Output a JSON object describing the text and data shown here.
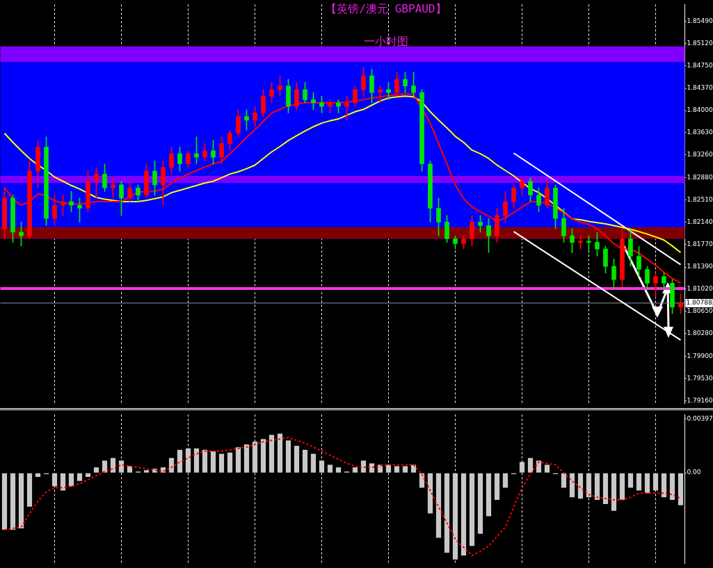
{
  "chart_data": [
    {
      "type": "candlestick",
      "title": "【英镑/澳元 GBPAUD】",
      "subtitle": "一小时图",
      "categories": [
        null,
        null,
        null,
        null,
        null,
        null,
        null,
        null,
        null,
        null,
        null,
        null,
        null,
        null,
        null,
        null,
        null,
        null,
        null,
        null,
        null,
        null,
        null,
        null,
        null,
        null,
        null,
        null,
        null,
        null,
        null,
        null,
        null,
        null,
        null,
        null,
        null,
        null,
        null,
        null,
        null,
        null,
        null,
        null,
        null,
        null,
        null,
        null,
        null,
        null,
        null,
        null,
        null,
        null,
        null,
        null,
        null,
        null,
        null,
        null,
        null,
        null,
        null,
        null,
        null,
        null,
        null,
        null,
        null,
        null,
        null,
        null,
        null,
        null,
        null,
        null,
        null,
        null,
        null,
        null,
        null,
        null
      ],
      "ohlc": [
        [
          1.8203,
          1.8271,
          1.8186,
          1.8254
        ],
        [
          1.8254,
          1.8259,
          1.818,
          1.8197
        ],
        [
          1.8197,
          1.8214,
          1.8174,
          1.8191
        ],
        [
          1.8191,
          1.8316,
          1.8186,
          1.8299
        ],
        [
          1.8299,
          1.835,
          1.8271,
          1.8339
        ],
        [
          1.8339,
          1.8356,
          1.8208,
          1.822
        ],
        [
          1.822,
          1.8259,
          1.8208,
          1.8242
        ],
        [
          1.8242,
          1.8259,
          1.8225,
          1.8248
        ],
        [
          1.8248,
          1.8265,
          1.8231,
          1.8242
        ],
        [
          1.8242,
          1.8254,
          1.8214,
          1.8237
        ],
        [
          1.8237,
          1.8299,
          1.8231,
          1.8282
        ],
        [
          1.8282,
          1.8305,
          1.8254,
          1.8294
        ],
        [
          1.8294,
          1.8311,
          1.8265,
          1.8271
        ],
        [
          1.8271,
          1.8288,
          1.8254,
          1.8276
        ],
        [
          1.8276,
          1.8282,
          1.8225,
          1.8254
        ],
        [
          1.8254,
          1.8282,
          1.8248,
          1.8271
        ],
        [
          1.8271,
          1.8276,
          1.8248,
          1.8259
        ],
        [
          1.8259,
          1.8311,
          1.8254,
          1.8299
        ],
        [
          1.8299,
          1.8316,
          1.8259,
          1.8276
        ],
        [
          1.8276,
          1.8316,
          1.8242,
          1.8305
        ],
        [
          1.8305,
          1.8339,
          1.8294,
          1.8328
        ],
        [
          1.8328,
          1.8339,
          1.8299,
          1.8311
        ],
        [
          1.8311,
          1.8333,
          1.8305,
          1.8328
        ],
        [
          1.8328,
          1.8356,
          1.8311,
          1.8322
        ],
        [
          1.8322,
          1.8345,
          1.8316,
          1.8333
        ],
        [
          1.8333,
          1.835,
          1.8311,
          1.8322
        ],
        [
          1.8322,
          1.8356,
          1.8311,
          1.8345
        ],
        [
          1.8345,
          1.8367,
          1.8333,
          1.8362
        ],
        [
          1.8362,
          1.8401,
          1.8356,
          1.839
        ],
        [
          1.839,
          1.8401,
          1.8367,
          1.8384
        ],
        [
          1.8384,
          1.8407,
          1.8373,
          1.8396
        ],
        [
          1.8396,
          1.8435,
          1.839,
          1.8424
        ],
        [
          1.8424,
          1.8447,
          1.8413,
          1.8435
        ],
        [
          1.8435,
          1.8458,
          1.8424,
          1.8441
        ],
        [
          1.8441,
          1.8452,
          1.8396,
          1.8407
        ],
        [
          1.8407,
          1.8447,
          1.8401,
          1.8435
        ],
        [
          1.8435,
          1.8447,
          1.8413,
          1.8418
        ],
        [
          1.8418,
          1.843,
          1.8401,
          1.8413
        ],
        [
          1.8413,
          1.8424,
          1.8396,
          1.8407
        ],
        [
          1.8407,
          1.8418,
          1.8396,
          1.8413
        ],
        [
          1.8413,
          1.8418,
          1.8396,
          1.8407
        ],
        [
          1.8407,
          1.8424,
          1.8384,
          1.8413
        ],
        [
          1.8413,
          1.8441,
          1.8407,
          1.8435
        ],
        [
          1.8435,
          1.8472,
          1.8424,
          1.8458
        ],
        [
          1.8458,
          1.8469,
          1.8413,
          1.843
        ],
        [
          1.843,
          1.8441,
          1.8413,
          1.8435
        ],
        [
          1.8435,
          1.8447,
          1.8418,
          1.843
        ],
        [
          1.843,
          1.8464,
          1.8424,
          1.8452
        ],
        [
          1.8452,
          1.8464,
          1.843,
          1.8441
        ],
        [
          1.8441,
          1.8464,
          1.8424,
          1.843
        ],
        [
          1.843,
          1.8435,
          1.8299,
          1.8311
        ],
        [
          1.8311,
          1.8316,
          1.8214,
          1.8237
        ],
        [
          1.8237,
          1.8254,
          1.8191,
          1.8214
        ],
        [
          1.8214,
          1.8225,
          1.818,
          1.8186
        ],
        [
          1.8186,
          1.8191,
          1.8169,
          1.8178
        ],
        [
          1.8178,
          1.8191,
          1.8169,
          1.8186
        ],
        [
          1.8186,
          1.8225,
          1.8174,
          1.8214
        ],
        [
          1.8214,
          1.8225,
          1.8197,
          1.8208
        ],
        [
          1.8208,
          1.822,
          1.8163,
          1.8191
        ],
        [
          1.8191,
          1.8237,
          1.818,
          1.8225
        ],
        [
          1.8225,
          1.8265,
          1.8214,
          1.8248
        ],
        [
          1.8248,
          1.8276,
          1.8237,
          1.8271
        ],
        [
          1.8271,
          1.8288,
          1.8259,
          1.8282
        ],
        [
          1.8282,
          1.8288,
          1.8248,
          1.8259
        ],
        [
          1.8259,
          1.8271,
          1.8231,
          1.8242
        ],
        [
          1.8242,
          1.8284,
          1.8237,
          1.8271
        ],
        [
          1.8271,
          1.8276,
          1.8203,
          1.822
        ],
        [
          1.822,
          1.8237,
          1.818,
          1.8191
        ],
        [
          1.8191,
          1.8203,
          1.8163,
          1.818
        ],
        [
          1.818,
          1.8191,
          1.8169,
          1.8182
        ],
        [
          1.8182,
          1.8191,
          1.8166,
          1.818
        ],
        [
          1.818,
          1.8197,
          1.8157,
          1.8169
        ],
        [
          1.8169,
          1.8174,
          1.8129,
          1.814
        ],
        [
          1.814,
          1.8152,
          1.8101,
          1.8118
        ],
        [
          1.8118,
          1.8203,
          1.8106,
          1.8186
        ],
        [
          1.8186,
          1.8203,
          1.814,
          1.8157
        ],
        [
          1.8157,
          1.8174,
          1.8123,
          1.8135
        ],
        [
          1.8135,
          1.814,
          1.8101,
          1.8112
        ],
        [
          1.8112,
          1.8129,
          1.8089,
          1.8123
        ],
        [
          1.8123,
          1.8129,
          1.8101,
          1.8112
        ],
        [
          1.8112,
          1.8118,
          1.8061,
          1.8072
        ],
        [
          1.8072,
          1.8095,
          1.8061,
          1.8078
        ]
      ],
      "colors": [
        "#ff0000",
        "#00e600",
        "#00e600",
        "#ff0000",
        "#ff0000",
        "#00e600",
        "#ff0000",
        "#ff0000",
        "#00e600",
        "#00e600",
        "#ff0000",
        "#ff0000",
        "#00e600",
        "#ff0000",
        "#00e600",
        "#ff0000",
        "#00e600",
        "#ff0000",
        "#00e600",
        "#ff0000",
        "#ff0000",
        "#00e600",
        "#ff0000",
        "#00e600",
        "#ff0000",
        "#00e600",
        "#ff0000",
        "#ff0000",
        "#ff0000",
        "#00e600",
        "#ff0000",
        "#ff0000",
        "#ff0000",
        "#ff0000",
        "#00e600",
        "#ff0000",
        "#00e600",
        "#00e600",
        "#00e600",
        "#ff0000",
        "#00e600",
        "#ff0000",
        "#ff0000",
        "#ff0000",
        "#00e600",
        "#ff0000",
        "#00e600",
        "#ff0000",
        "#00e600",
        "#00e600",
        "#00e600",
        "#00e600",
        "#00e600",
        "#00e600",
        "#00e600",
        "#ff0000",
        "#ff0000",
        "#00e600",
        "#00e600",
        "#ff0000",
        "#ff0000",
        "#ff0000",
        "#ff0000",
        "#00e600",
        "#00e600",
        "#ff0000",
        "#00e600",
        "#00e600",
        "#00e600",
        "#ff0000",
        "#00e600",
        "#00e600",
        "#00e600",
        "#00e600",
        "#ff0000",
        "#00e600",
        "#00e600",
        "#00e600",
        "#ff0000",
        "#00e600",
        "#00e600",
        "#ff0000"
      ],
      "series": [
        {
          "type": "line",
          "color": "#ff0000",
          "values": [
            1.8272,
            1.8252,
            1.8242,
            1.8248,
            1.8261,
            1.8258,
            1.8249,
            1.8246,
            1.8244,
            1.8244,
            1.8246,
            1.8248,
            1.8248,
            1.8248,
            1.8248,
            1.8256,
            1.8264,
            1.8265,
            1.8265,
            1.8269,
            1.8279,
            1.8287,
            1.8294,
            1.83,
            1.8306,
            1.8311,
            1.8315,
            1.8328,
            1.8341,
            1.8355,
            1.8368,
            1.8382,
            1.8396,
            1.8402,
            1.8408,
            1.8411,
            1.8413,
            1.8413,
            1.8413,
            1.8413,
            1.8413,
            1.8414,
            1.8416,
            1.8418,
            1.8421,
            1.8423,
            1.8425,
            1.8426,
            1.8428,
            1.8427,
            null,
            1.8379,
            1.8345,
            1.8311,
            1.8276,
            1.8253,
            1.8239,
            1.8231,
            1.8224,
            1.8215,
            1.8221,
            1.823,
            1.8239,
            1.8248,
            1.8248,
            1.8245,
            1.8238,
            1.8229,
            1.8219,
            1.8214,
            1.821,
            1.8203,
            1.8191,
            1.8178,
            1.8169,
            1.8169,
            1.8162,
            1.8152,
            1.8142,
            1.813,
            1.812,
            1.8112
          ]
        },
        {
          "type": "line",
          "color": "#ffff00",
          "values": [
            1.8362,
            1.8347,
            1.8333,
            1.832,
            1.8309,
            1.83,
            1.8289,
            1.8282,
            1.8275,
            1.8269,
            1.8262,
            1.8255,
            1.8252,
            1.825,
            1.8248,
            1.8248,
            1.8248,
            1.825,
            1.8253,
            1.8256,
            1.8263,
            1.8267,
            1.8271,
            1.8275,
            1.8279,
            1.8282,
            1.8288,
            1.8294,
            1.8298,
            1.8303,
            1.8309,
            1.832,
            1.8331,
            1.834,
            1.835,
            1.8358,
            1.8366,
            1.8373,
            1.8379,
            1.8383,
            1.8386,
            1.8392,
            1.8398,
            1.8402,
            1.8409,
            1.8416,
            1.8421,
            1.8423,
            1.8424,
            1.8423,
            1.8414,
            1.8398,
            1.8384,
            1.8371,
            1.8357,
            1.8347,
            1.8334,
            1.8328,
            1.832,
            1.8309,
            1.83,
            1.8291,
            1.828,
            1.827,
            1.8263,
            1.8253,
            1.8242,
            null,
            1.8219,
            1.8218,
            1.8215,
            1.8213,
            1.8211,
            1.8208,
            1.8205,
            1.8202,
            1.8198,
            1.8194,
            1.8189,
            1.8184,
            1.8174,
            1.8163
          ]
        },
        {
          "type": "line",
          "color": "#ffffff",
          "values": [
            null,
            null,
            null,
            null,
            null,
            null,
            null,
            null,
            null,
            null,
            null,
            null,
            null,
            null,
            null,
            null,
            null,
            null,
            null,
            null,
            null,
            null,
            null,
            null,
            null,
            null,
            null,
            null,
            null,
            null,
            null,
            null,
            null,
            null,
            null,
            null,
            null,
            null,
            null,
            null,
            null,
            null,
            null,
            null,
            null,
            null,
            null,
            null,
            null,
            null,
            null,
            null,
            null,
            null,
            null,
            null,
            null,
            null,
            null,
            null,
            null,
            1.8329,
            null,
            null,
            null,
            null,
            null,
            null,
            null,
            null,
            null,
            null,
            null,
            null,
            null,
            null,
            null,
            null,
            null,
            null,
            null,
            1.8143
          ]
        },
        {
          "type": "line",
          "color": "#ffffff",
          "values": [
            null,
            null,
            null,
            null,
            null,
            null,
            null,
            null,
            null,
            null,
            null,
            null,
            null,
            null,
            null,
            null,
            null,
            null,
            null,
            null,
            null,
            null,
            null,
            null,
            null,
            null,
            null,
            null,
            null,
            null,
            null,
            null,
            null,
            null,
            null,
            null,
            null,
            null,
            null,
            null,
            null,
            null,
            null,
            null,
            null,
            null,
            null,
            null,
            null,
            null,
            null,
            null,
            null,
            null,
            null,
            null,
            null,
            null,
            null,
            null,
            null,
            1.8198,
            null,
            null,
            null,
            null,
            null,
            null,
            null,
            null,
            null,
            null,
            null,
            null,
            null,
            null,
            null,
            null,
            null,
            null,
            null,
            1.8017
          ]
        }
      ],
      "ylim": [
        1.7911,
        1.8577
      ],
      "yticks": [
        {
          "value": 1.8549,
          "label": "1.85490"
        },
        {
          "value": 1.8512,
          "label": "1.85120"
        },
        {
          "value": 1.8475,
          "label": "1.84750"
        },
        {
          "value": 1.8437,
          "label": "1.84370"
        },
        {
          "value": 1.84,
          "label": "1.84000"
        },
        {
          "value": 1.8363,
          "label": "1.83630"
        },
        {
          "value": 1.8326,
          "label": "1.83260"
        },
        {
          "value": 1.8288,
          "label": "1.82880"
        },
        {
          "value": 1.8251,
          "label": "1.82510"
        },
        {
          "value": 1.8214,
          "label": "1.82140"
        },
        {
          "value": 1.8177,
          "label": "1.81770"
        },
        {
          "value": 1.8139,
          "label": "1.81390"
        },
        {
          "value": 1.8102,
          "label": "1.81020"
        },
        {
          "value": 1.8065,
          "label": "1.80650"
        },
        {
          "value": 1.8028,
          "label": "1.80280"
        },
        {
          "value": 1.799,
          "label": "1.79900"
        },
        {
          "value": 1.7953,
          "label": "1.79530"
        },
        {
          "value": 1.7916,
          "label": "1.79160"
        }
      ],
      "bands": [
        {
          "axis": "y",
          "from": 1.8186,
          "to": 1.8481,
          "color": "#0000ff"
        },
        {
          "axis": "y",
          "from": 1.8481,
          "to": 1.8507,
          "color": "#8000ff"
        },
        {
          "axis": "y",
          "from": 1.8279,
          "to": 1.8291,
          "color": "#8000ff"
        },
        {
          "axis": "y",
          "from": 1.8186,
          "to": 1.8205,
          "color": "#800000"
        }
      ],
      "ref_lines": [
        {
          "axis": "y",
          "value": 1.80788,
          "label": "1.80788",
          "color": "#8c9bab"
        },
        {
          "axis": "y",
          "value": 1.8103,
          "color": "#ff33dd"
        }
      ],
      "grid": "x",
      "legend": false
    },
    {
      "type": "bar",
      "categories": [
        null,
        null,
        null,
        null,
        null,
        null,
        null,
        null,
        null,
        null,
        null,
        null,
        null,
        null,
        null,
        null,
        null,
        null,
        null,
        null,
        null,
        null,
        null,
        null,
        null,
        null,
        null,
        null,
        null,
        null,
        null,
        null,
        null,
        null,
        null,
        null,
        null,
        null,
        null,
        null,
        null,
        null,
        null,
        null,
        null,
        null,
        null,
        null,
        null,
        null,
        null,
        null,
        null,
        null,
        null,
        null,
        null,
        null,
        null,
        null,
        null,
        null,
        null,
        null,
        null,
        null,
        null,
        null,
        null,
        null,
        null,
        null,
        null,
        null,
        null,
        null,
        null,
        null,
        null,
        null,
        null,
        null
      ],
      "series": [
        {
          "color": "#c8c8c8",
          "values": [
            -0.0042,
            -0.0042,
            -0.0041,
            -0.0025,
            -0.0003,
            -0.0001,
            -0.001,
            -0.0013,
            -0.001,
            -0.0006,
            -0.0003,
            0.0004,
            0.0009,
            0.0011,
            0.0009,
            0.0005,
            0.0001,
            0.0002,
            0.0003,
            0.0004,
            0.0011,
            0.0017,
            0.0018,
            0.0018,
            0.0017,
            0.0016,
            0.0014,
            0.0015,
            0.0019,
            0.0021,
            0.0023,
            0.0025,
            0.0028,
            0.0029,
            0.0024,
            0.002,
            0.0017,
            0.0014,
            0.0009,
            0.0006,
            0.0004,
            0.0001,
            0.0004,
            0.0009,
            0.0007,
            0.0006,
            0.0006,
            0.0005,
            0.0005,
            0.0006,
            -0.0011,
            -0.003,
            -0.0048,
            -0.0059,
            -0.0064,
            -0.0061,
            -0.0054,
            -0.0045,
            -0.0032,
            -0.002,
            -0.0011,
            -0.0001,
            0.0008,
            0.0011,
            0.0009,
            0.0006,
            -0.0001,
            -0.0011,
            -0.0018,
            -0.0019,
            -0.0018,
            -0.002,
            -0.0023,
            -0.0028,
            -0.002,
            -0.0011,
            -0.0013,
            -0.0015,
            -0.0013,
            -0.0018,
            -0.002,
            -0.0024
          ]
        },
        {
          "type": "line",
          "color": "#ff0000",
          "line_style": "dashed",
          "values": [
            -0.0042,
            -0.0041,
            -0.004,
            -0.003,
            -0.0021,
            -0.0014,
            -0.0011,
            -0.0011,
            -0.001,
            -0.0008,
            -0.0005,
            -0.0002,
            0.0001,
            0.0003,
            0.0006,
            0.0005,
            0.0004,
            0.0003,
            0.0002,
            0.0001,
            0.0004,
            0.0008,
            0.0011,
            0.0014,
            0.0016,
            0.0016,
            0.0016,
            0.0017,
            0.0018,
            0.0019,
            0.0021,
            0.0023,
            0.0024,
            0.0025,
            0.0026,
            0.0024,
            0.0022,
            0.0019,
            0.0016,
            0.0013,
            0.001,
            0.0007,
            0.0005,
            0.0004,
            0.0004,
            0.0005,
            0.0006,
            0.0006,
            0.0006,
            0.0006,
            -0.0001,
            -0.0013,
            -0.0025,
            -0.0037,
            -0.0049,
            -0.0055,
            -0.0061,
            -0.0058,
            -0.0054,
            -0.0047,
            -0.004,
            -0.0025,
            -0.0011,
            -0.0001,
            0.0008,
            0.0007,
            0.0006,
            0.0,
            -0.0006,
            -0.0011,
            -0.0016,
            -0.0018,
            -0.0019,
            -0.002,
            -0.002,
            -0.0018,
            -0.0015,
            -0.0015,
            -0.0015,
            -0.0015,
            -0.0016,
            -0.0019
          ]
        }
      ],
      "ylim": [
        -0.0067,
        0.0043
      ],
      "yticks": [
        {
          "value": 0.00397,
          "label": "0.00397"
        },
        {
          "value": 0,
          "label": "0.00"
        }
      ],
      "grid": "x",
      "legend": false
    }
  ]
}
